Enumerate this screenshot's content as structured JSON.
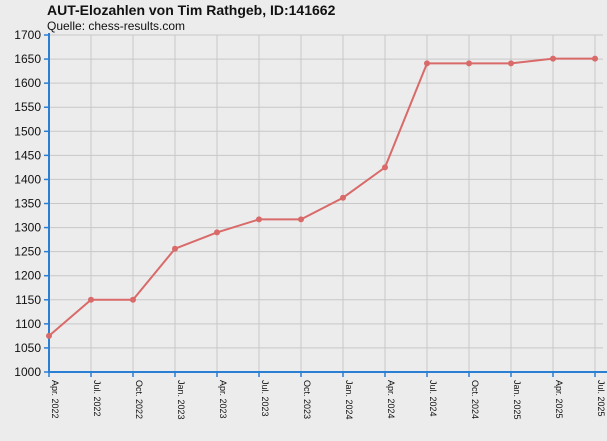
{
  "chart_data": {
    "type": "line",
    "title": "AUT-Elozahlen von Tim Rathgeb, ID:141662",
    "subtitle": "Quelle: chess-results.com",
    "xlabel": "",
    "ylabel": "",
    "categories": [
      "Apr. 2022",
      "Jul. 2022",
      "Oct. 2022",
      "Jan. 2023",
      "Apr. 2023",
      "Jul. 2023",
      "Oct. 2023",
      "Jan. 2024",
      "Apr. 2024",
      "Jul. 2024",
      "Oct. 2024",
      "Jan. 2025",
      "Apr. 2025",
      "Jul. 2025"
    ],
    "series": [
      {
        "values": [
          1075,
          1150,
          1150,
          1256,
          1290,
          1317,
          1317,
          1362,
          1425,
          1641,
          1641,
          1641,
          1651,
          1651
        ]
      }
    ],
    "ylim": [
      1000,
      1700
    ],
    "yticks": [
      1000,
      1050,
      1100,
      1150,
      1200,
      1250,
      1300,
      1350,
      1400,
      1450,
      1500,
      1550,
      1600,
      1650,
      1700
    ],
    "grid": true,
    "line_color": "#d96a6a",
    "axis_color": "#2a7fd4",
    "background": "#ececec"
  }
}
